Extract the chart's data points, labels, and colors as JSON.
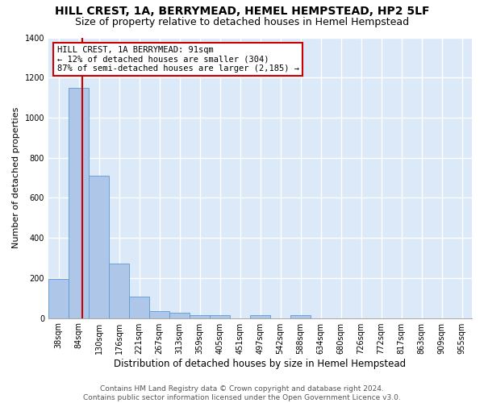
{
  "title": "HILL CREST, 1A, BERRYMEAD, HEMEL HEMPSTEAD, HP2 5LF",
  "subtitle": "Size of property relative to detached houses in Hemel Hempstead",
  "xlabel": "Distribution of detached houses by size in Hemel Hempstead",
  "ylabel": "Number of detached properties",
  "bin_labels": [
    "38sqm",
    "84sqm",
    "130sqm",
    "176sqm",
    "221sqm",
    "267sqm",
    "313sqm",
    "359sqm",
    "405sqm",
    "451sqm",
    "497sqm",
    "542sqm",
    "588sqm",
    "634sqm",
    "680sqm",
    "726sqm",
    "772sqm",
    "817sqm",
    "863sqm",
    "909sqm",
    "955sqm"
  ],
  "bar_values": [
    195,
    1150,
    710,
    270,
    105,
    35,
    27,
    14,
    13,
    0,
    16,
    0,
    16,
    0,
    0,
    0,
    0,
    0,
    0,
    0,
    0
  ],
  "bar_color": "#aec6e8",
  "bar_edgecolor": "#5b9bd5",
  "annotation_line1": "HILL CREST, 1A BERRYMEAD: 91sqm",
  "annotation_line2": "← 12% of detached houses are smaller (304)",
  "annotation_line3": "87% of semi-detached houses are larger (2,185) →",
  "annotation_box_color": "#ffffff",
  "annotation_box_edgecolor": "#cc0000",
  "vline_color": "#cc0000",
  "vline_x_index": 1.18,
  "ylim": [
    0,
    1400
  ],
  "yticks": [
    0,
    200,
    400,
    600,
    800,
    1000,
    1200,
    1400
  ],
  "footer_text": "Contains HM Land Registry data © Crown copyright and database right 2024.\nContains public sector information licensed under the Open Government Licence v3.0.",
  "bg_color": "#dce9f8",
  "grid_color": "#ffffff",
  "fig_bg_color": "#ffffff",
  "title_fontsize": 10,
  "subtitle_fontsize": 9,
  "xlabel_fontsize": 8.5,
  "ylabel_fontsize": 8,
  "tick_fontsize": 7,
  "footer_fontsize": 6.5,
  "annotation_fontsize": 7.5
}
